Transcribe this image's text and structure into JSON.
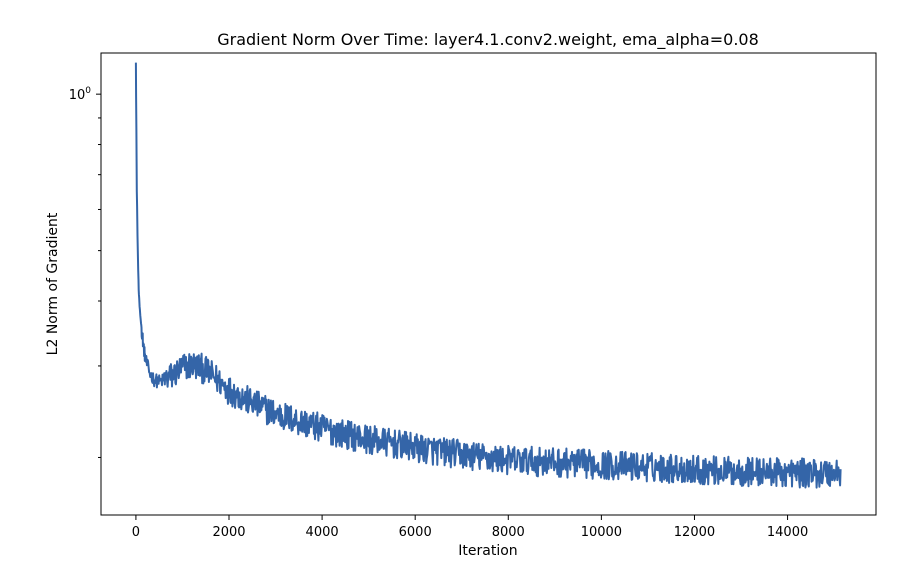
{
  "chart_data": {
    "type": "line",
    "title": "Gradient Norm Over Time: layer4.1.conv2.weight, ema_alpha=0.08",
    "xlabel": "Iteration",
    "ylabel": "L2 Norm of Gradient",
    "yscale": "log",
    "xlim": [
      -750,
      15900
    ],
    "ylim": [
      0.155,
      1.2
    ],
    "xticks": [
      0,
      2000,
      4000,
      6000,
      8000,
      10000,
      12000,
      14000
    ],
    "xtick_labels": [
      "0",
      "2000",
      "4000",
      "6000",
      "8000",
      "10000",
      "12000",
      "14000"
    ],
    "yticks_major": [
      1.0
    ],
    "ytick_labels": [
      "10",
      "0"
    ],
    "grid": false,
    "line_color": "#3465a8",
    "series": [
      {
        "x": [
          0,
          10,
          20,
          40,
          60,
          80,
          100,
          150,
          200,
          300,
          400,
          500,
          600,
          800,
          1000,
          1200,
          1400,
          1600,
          1800,
          2000,
          2500,
          3000,
          3500,
          4000,
          4500,
          5000,
          5500,
          6000,
          6500,
          7000,
          7500,
          8000,
          8500,
          9000,
          9500,
          10000,
          10500,
          11000,
          11500,
          12000,
          12500,
          13000,
          13500,
          14000,
          14500,
          15000,
          15150
        ],
        "y": [
          1.15,
          0.85,
          0.65,
          0.5,
          0.42,
          0.39,
          0.37,
          0.335,
          0.31,
          0.29,
          0.282,
          0.28,
          0.282,
          0.288,
          0.298,
          0.302,
          0.298,
          0.29,
          0.28,
          0.27,
          0.255,
          0.243,
          0.235,
          0.228,
          0.222,
          0.217,
          0.213,
          0.209,
          0.206,
          0.203,
          0.2,
          0.198,
          0.197,
          0.196,
          0.195,
          0.194,
          0.193,
          0.192,
          0.191,
          0.19,
          0.189,
          0.188,
          0.188,
          0.187,
          0.187,
          0.187,
          0.188
        ]
      }
    ]
  }
}
